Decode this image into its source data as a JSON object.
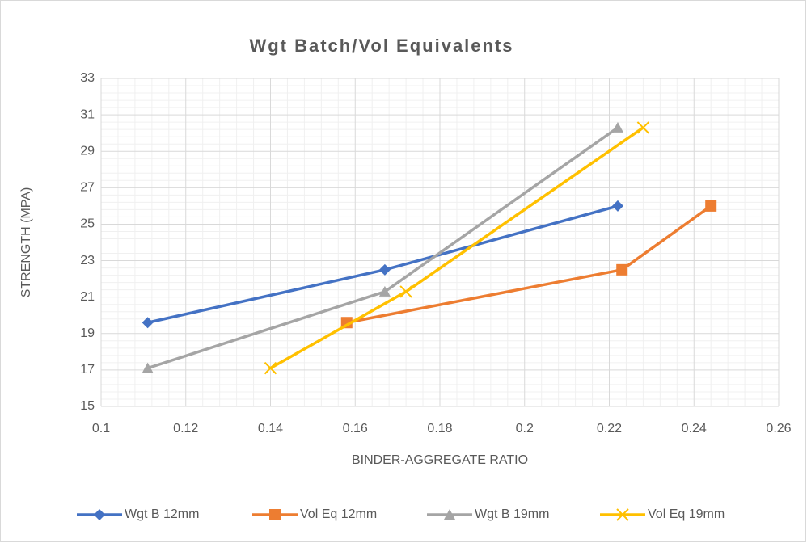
{
  "chart_data": {
    "type": "line_scatter",
    "title": "Wgt Batch/Vol Equivalents",
    "xlabel": "BINDER-AGGREGATE  RATIO",
    "ylabel": "STRENGTH (MPA)",
    "xlim": [
      0.1,
      0.26
    ],
    "xticks": [
      0.1,
      0.12,
      0.14,
      0.16,
      0.18,
      0.2,
      0.22,
      0.24,
      0.26
    ],
    "ylim": [
      15,
      33
    ],
    "yticks": [
      15,
      17,
      19,
      21,
      23,
      25,
      27,
      29,
      31,
      33
    ],
    "grid": true,
    "minor_grid": true,
    "legend": "bottom",
    "series": [
      {
        "name": "Wgt B 12mm",
        "color": "#4472c4",
        "marker": "diamond",
        "x": [
          0.111,
          0.167,
          0.222
        ],
        "values": [
          19.6,
          22.5,
          26.0
        ]
      },
      {
        "name": "Vol Eq 12mm",
        "color": "#ed7d31",
        "marker": "square",
        "x": [
          0.158,
          0.223,
          0.244
        ],
        "values": [
          19.6,
          22.5,
          26.0
        ]
      },
      {
        "name": "Wgt B 19mm",
        "color": "#a5a5a5",
        "marker": "triangle",
        "x": [
          0.111,
          0.167,
          0.222
        ],
        "values": [
          17.1,
          21.3,
          30.3
        ]
      },
      {
        "name": "Vol Eq 19mm",
        "color": "#ffc000",
        "marker": "x",
        "x": [
          0.14,
          0.172,
          0.228
        ],
        "values": [
          17.1,
          21.3,
          30.3
        ]
      }
    ]
  }
}
